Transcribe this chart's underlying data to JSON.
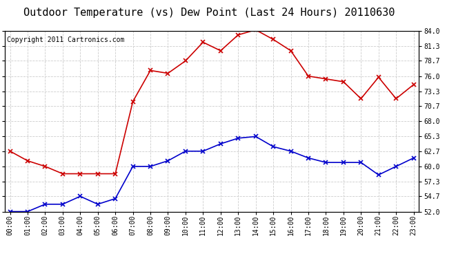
{
  "title": "Outdoor Temperature (vs) Dew Point (Last 24 Hours) 20110630",
  "copyright_text": "Copyright 2011 Cartronics.com",
  "x_labels": [
    "00:00",
    "01:00",
    "02:00",
    "03:00",
    "04:00",
    "05:00",
    "06:00",
    "07:00",
    "08:00",
    "09:00",
    "10:00",
    "11:00",
    "12:00",
    "13:00",
    "14:00",
    "15:00",
    "16:00",
    "17:00",
    "18:00",
    "19:00",
    "20:00",
    "21:00",
    "22:00",
    "23:00"
  ],
  "red_data": [
    62.7,
    61.0,
    60.0,
    58.7,
    58.7,
    58.7,
    58.7,
    71.5,
    77.0,
    76.5,
    78.7,
    82.0,
    80.5,
    83.3,
    84.2,
    82.5,
    80.5,
    76.0,
    75.5,
    75.0,
    72.0,
    75.8,
    72.0,
    74.5
  ],
  "blue_data": [
    52.0,
    52.0,
    53.3,
    53.3,
    54.7,
    53.3,
    54.3,
    60.0,
    60.0,
    61.0,
    62.7,
    62.7,
    64.0,
    65.0,
    65.3,
    63.5,
    62.7,
    61.5,
    60.7,
    60.7,
    60.7,
    58.5,
    60.0,
    61.5
  ],
  "ylim": [
    52.0,
    84.0
  ],
  "yticks": [
    52.0,
    54.7,
    57.3,
    60.0,
    62.7,
    65.3,
    68.0,
    70.7,
    73.3,
    76.0,
    78.7,
    81.3,
    84.0
  ],
  "bg_color": "#ffffff",
  "grid_color": "#cccccc",
  "red_color": "#cc0000",
  "blue_color": "#0000cc",
  "title_fontsize": 11,
  "copyright_fontsize": 7,
  "tick_fontsize": 7
}
